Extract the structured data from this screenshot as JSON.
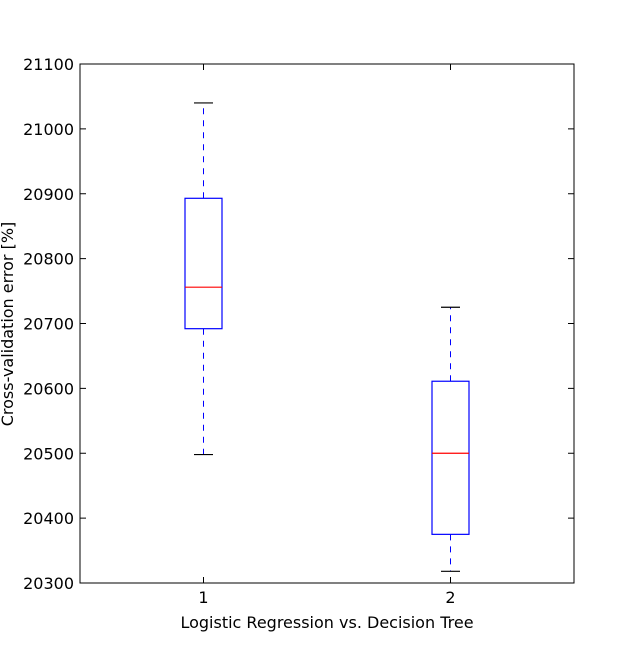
{
  "chart_data": {
    "type": "box",
    "xlabel": "Logistic Regression   vs.   Decision Tree",
    "ylabel": "Cross-validation error [%]",
    "categories": [
      "1",
      "2"
    ],
    "ylim": [
      20300,
      21100
    ],
    "yticks": [
      20300,
      20400,
      20500,
      20600,
      20700,
      20800,
      20900,
      21000,
      21100
    ],
    "boxes": [
      {
        "category": "1",
        "whisker_low": 20498,
        "q1": 20692,
        "median": 20756,
        "q3": 20893,
        "whisker_high": 21040
      },
      {
        "category": "2",
        "whisker_low": 20318,
        "q1": 20375,
        "median": 20500,
        "q3": 20611,
        "whisker_high": 20725
      }
    ],
    "colors": {
      "box": "#0000ff",
      "median": "#ff0000",
      "axis": "#000000"
    },
    "grid": false
  }
}
